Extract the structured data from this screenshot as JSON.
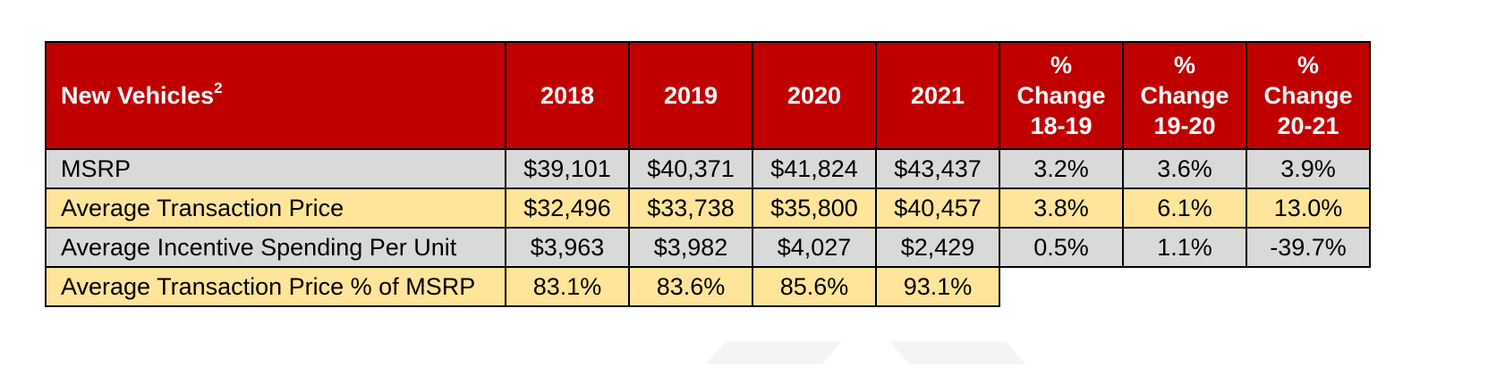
{
  "table": {
    "corner_label": "New Vehicles",
    "corner_footnote": "2",
    "year_headers": [
      "2018",
      "2019",
      "2020",
      "2021"
    ],
    "change_headers": [
      {
        "line1": "%",
        "line2": "Change",
        "line3": "18-19"
      },
      {
        "line1": "%",
        "line2": "Change",
        "line3": "19-20"
      },
      {
        "line1": "%",
        "line2": "Change",
        "line3": "20-21"
      }
    ],
    "rows": [
      {
        "label": "MSRP",
        "years": [
          "$39,101",
          "$40,371",
          "$41,824",
          "$43,437"
        ],
        "changes": [
          "3.2%",
          "3.6%",
          "3.9%"
        ]
      },
      {
        "label": "Average Transaction Price",
        "years": [
          "$32,496",
          "$33,738",
          "$35,800",
          "$40,457"
        ],
        "changes": [
          "3.8%",
          "6.1%",
          "13.0%"
        ]
      },
      {
        "label": "Average Incentive Spending Per Unit",
        "years": [
          "$3,963",
          "$3,982",
          "$4,027",
          "$2,429"
        ],
        "changes": [
          "0.5%",
          "1.1%",
          "-39.7%"
        ]
      },
      {
        "label": "Average Transaction Price % of MSRP",
        "years": [
          "83.1%",
          "83.6%",
          "85.6%",
          "93.1%"
        ]
      }
    ]
  },
  "colors": {
    "header_bg": "#c00000",
    "header_text": "#ffffff",
    "row_gray": "#d9d9d9",
    "row_yellow": "#fee599",
    "border": "#000000"
  }
}
